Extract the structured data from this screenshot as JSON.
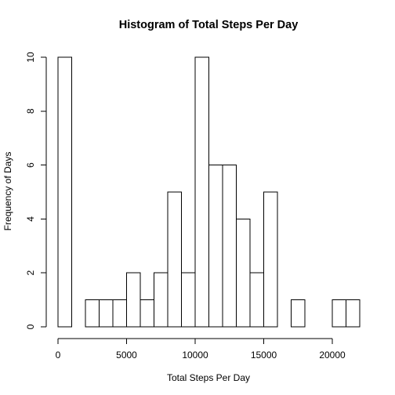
{
  "chart_data": {
    "type": "bar",
    "subtype": "histogram",
    "title": "Histogram of Total Steps Per Day",
    "xlabel": "Total Steps Per Day",
    "ylabel": "Frequency of Days",
    "bin_width": 1000,
    "x_start": 0,
    "values": [
      10,
      0,
      1,
      1,
      1,
      2,
      1,
      2,
      5,
      2,
      10,
      6,
      6,
      4,
      2,
      5,
      0,
      1,
      0,
      0,
      1,
      1
    ],
    "xlim": [
      0,
      22000
    ],
    "ylim": [
      0,
      10
    ],
    "x_ticks": [
      0,
      5000,
      10000,
      15000,
      20000
    ],
    "y_ticks": [
      0,
      2,
      4,
      6,
      8,
      10
    ],
    "x_tick_labels": [
      "0",
      "5000",
      "10000",
      "15000",
      "20000"
    ],
    "y_tick_labels": [
      "0",
      "2",
      "4",
      "6",
      "8",
      "10"
    ],
    "bar_fill": "#ffffff",
    "bar_stroke": "#000000",
    "grid": false,
    "legend": "none"
  }
}
